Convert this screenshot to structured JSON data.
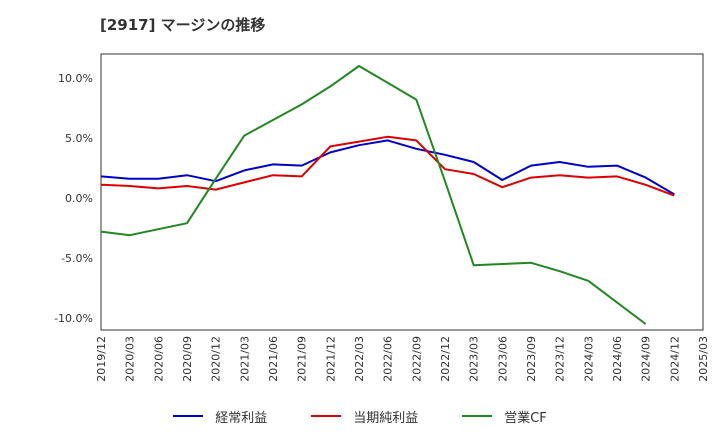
{
  "title": "[2917]  マージンの推移",
  "chart_data": {
    "type": "line",
    "title": "[2917]  マージンの推移",
    "xlabel": "",
    "ylabel": "",
    "x": [
      "2019/12",
      "2020/03",
      "2020/06",
      "2020/09",
      "2020/12",
      "2021/03",
      "2021/06",
      "2021/09",
      "2021/12",
      "2022/03",
      "2022/06",
      "2022/09",
      "2022/12",
      "2023/03",
      "2023/06",
      "2023/09",
      "2023/12",
      "2024/03",
      "2024/06",
      "2024/09",
      "2024/12",
      "2025/03"
    ],
    "ylim": [
      -11.0,
      12.0
    ],
    "yticks": [
      10.0,
      5.0,
      0.0,
      -5.0,
      -10.0
    ],
    "ytick_labels": [
      "10.0%",
      "5.0%",
      "0.0%",
      "-5.0%",
      "-10.0%"
    ],
    "grid": true,
    "legend_position": "bottom",
    "series": [
      {
        "name": "経常利益",
        "color": "#0000cc",
        "values": [
          1.8,
          1.6,
          1.6,
          1.9,
          1.4,
          2.3,
          2.8,
          2.7,
          3.8,
          4.4,
          4.8,
          4.1,
          3.6,
          3.0,
          1.5,
          2.7,
          3.0,
          2.6,
          2.7,
          1.7,
          0.3,
          null
        ]
      },
      {
        "name": "当期純利益",
        "color": "#dd0000",
        "values": [
          1.1,
          1.0,
          0.8,
          1.0,
          0.7,
          1.3,
          1.9,
          1.8,
          4.3,
          4.7,
          5.1,
          4.8,
          2.4,
          2.0,
          0.9,
          1.7,
          1.9,
          1.7,
          1.8,
          1.1,
          0.2,
          null
        ]
      },
      {
        "name": "営業CF",
        "color": "#228822",
        "values": [
          -2.8,
          -3.1,
          -2.6,
          -2.1,
          1.6,
          5.2,
          6.5,
          7.8,
          9.3,
          11.0,
          9.6,
          8.2,
          1.4,
          -5.6,
          -5.5,
          -5.4,
          -6.1,
          -6.9,
          -8.7,
          -10.5,
          null,
          null
        ]
      }
    ]
  }
}
